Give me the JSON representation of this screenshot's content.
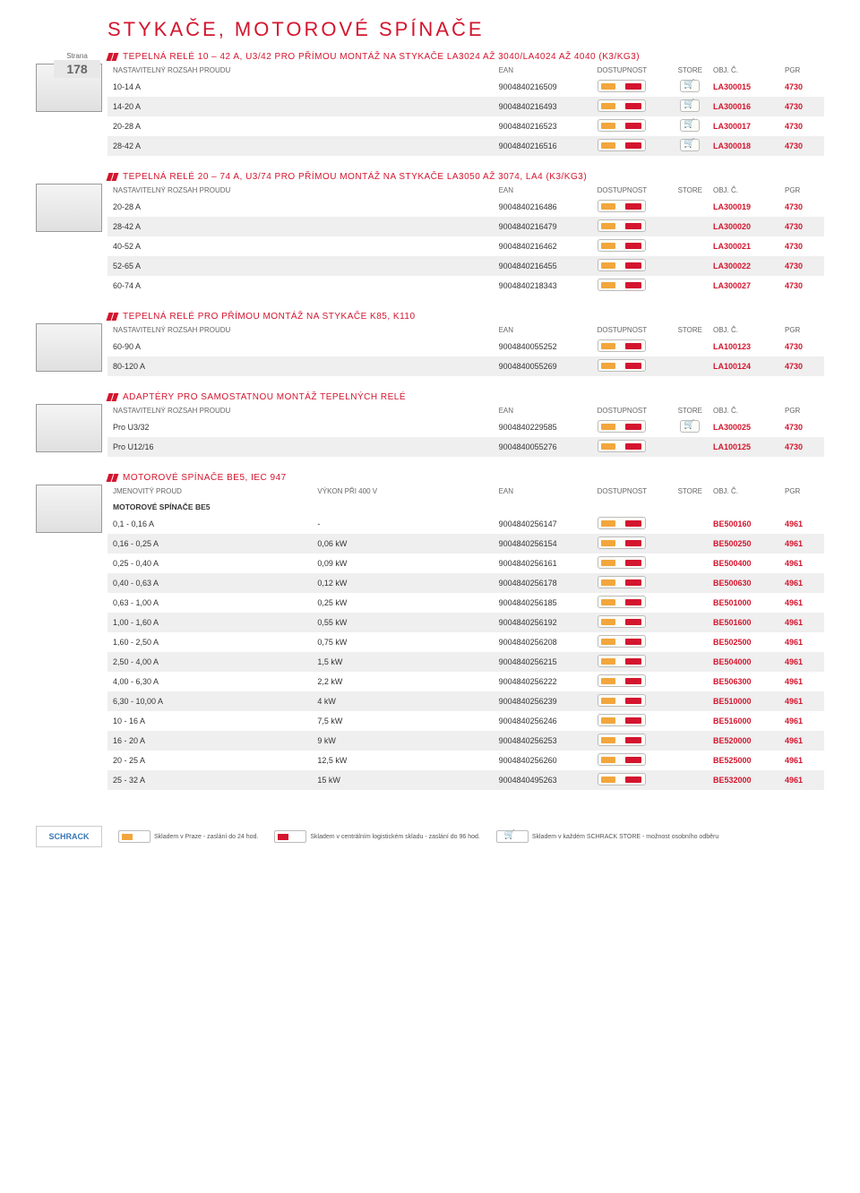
{
  "page": {
    "title": "STYKAČE, MOTOROVÉ SPÍNAČE",
    "strana_label": "Strana",
    "strana_num": "178"
  },
  "colors": {
    "accent": "#d4152e",
    "zebra": "#efefef",
    "text": "#333333"
  },
  "common_headers": {
    "col1": "NASTAVITELNÝ ROZSAH PROUDU",
    "ean": "EAN",
    "dostup": "DOSTUPNOST",
    "store": "STORE",
    "obj": "OBJ. Č.",
    "pgr": "PGR"
  },
  "sections": [
    {
      "title": "TEPELNÁ RELÉ 10 – 42 A, U3/42 PRO PŘÍMOU MONTÁŽ NA STYKAČE LA3024 AŽ 3040/LA4024 AŽ 4040 (K3/KG3)",
      "rows": [
        {
          "c1": "10-14 A",
          "ean": "9004840216509",
          "store": true,
          "obj": "LA300015",
          "pgr": "4730",
          "z": false
        },
        {
          "c1": "14-20 A",
          "ean": "9004840216493",
          "store": true,
          "obj": "LA300016",
          "pgr": "4730",
          "z": true
        },
        {
          "c1": "20-28 A",
          "ean": "9004840216523",
          "store": true,
          "obj": "LA300017",
          "pgr": "4730",
          "z": false
        },
        {
          "c1": "28-42 A",
          "ean": "9004840216516",
          "store": true,
          "obj": "LA300018",
          "pgr": "4730",
          "z": true
        }
      ]
    },
    {
      "title": "TEPELNÁ RELÉ 20 – 74 A, U3/74 PRO PŘÍMOU MONTÁŽ NA STYKAČE LA3050 AŽ 3074, LA4 (K3/KG3)",
      "rows": [
        {
          "c1": "20-28 A",
          "ean": "9004840216486",
          "store": false,
          "obj": "LA300019",
          "pgr": "4730",
          "z": false
        },
        {
          "c1": "28-42 A",
          "ean": "9004840216479",
          "store": false,
          "obj": "LA300020",
          "pgr": "4730",
          "z": true
        },
        {
          "c1": "40-52 A",
          "ean": "9004840216462",
          "store": false,
          "obj": "LA300021",
          "pgr": "4730",
          "z": false
        },
        {
          "c1": "52-65 A",
          "ean": "9004840216455",
          "store": false,
          "obj": "LA300022",
          "pgr": "4730",
          "z": true
        },
        {
          "c1": "60-74 A",
          "ean": "9004840218343",
          "store": false,
          "obj": "LA300027",
          "pgr": "4730",
          "z": false
        }
      ]
    },
    {
      "title": "TEPELNÁ RELÉ PRO PŘÍMOU MONTÁŽ NA STYKAČE K85, K110",
      "rows": [
        {
          "c1": "60-90 A",
          "ean": "9004840055252",
          "store": false,
          "obj": "LA100123",
          "pgr": "4730",
          "z": false
        },
        {
          "c1": "80-120 A",
          "ean": "9004840055269",
          "store": false,
          "obj": "LA100124",
          "pgr": "4730",
          "z": true
        }
      ]
    },
    {
      "title": "ADAPTÉRY PRO SAMOSTATNOU MONTÁŽ TEPELNÝCH RELÉ",
      "rows": [
        {
          "c1": "Pro U3/32",
          "ean": "9004840229585",
          "store": true,
          "obj": "LA300025",
          "pgr": "4730",
          "z": false
        },
        {
          "c1": "Pro U12/16",
          "ean": "9004840055276",
          "store": false,
          "obj": "LA100125",
          "pgr": "4730",
          "z": true
        }
      ]
    }
  ],
  "motor_section": {
    "title": "MOTOROVÉ SPÍNAČE BE5, IEC 947",
    "header_col1": "JMENOVITÝ PROUD",
    "header_col2": "VÝKON PŘI 400 V",
    "subheader": "MOTOROVÉ SPÍNAČE BE5",
    "rows": [
      {
        "c1": "0,1 - 0,16 A",
        "c2": "-",
        "ean": "9004840256147",
        "obj": "BE500160",
        "pgr": "4961",
        "z": false
      },
      {
        "c1": "0,16 - 0,25 A",
        "c2": "0,06 kW",
        "ean": "9004840256154",
        "obj": "BE500250",
        "pgr": "4961",
        "z": true
      },
      {
        "c1": "0,25 - 0,40 A",
        "c2": "0,09 kW",
        "ean": "9004840256161",
        "obj": "BE500400",
        "pgr": "4961",
        "z": false
      },
      {
        "c1": "0,40 - 0,63 A",
        "c2": "0,12 kW",
        "ean": "9004840256178",
        "obj": "BE500630",
        "pgr": "4961",
        "z": true
      },
      {
        "c1": "0,63 - 1,00 A",
        "c2": "0,25 kW",
        "ean": "9004840256185",
        "obj": "BE501000",
        "pgr": "4961",
        "z": false
      },
      {
        "c1": "1,00 - 1,60 A",
        "c2": "0,55 kW",
        "ean": "9004840256192",
        "obj": "BE501600",
        "pgr": "4961",
        "z": true
      },
      {
        "c1": "1,60 - 2,50 A",
        "c2": "0,75 kW",
        "ean": "9004840256208",
        "obj": "BE502500",
        "pgr": "4961",
        "z": false
      },
      {
        "c1": "2,50 - 4,00 A",
        "c2": "1,5 kW",
        "ean": "9004840256215",
        "obj": "BE504000",
        "pgr": "4961",
        "z": true
      },
      {
        "c1": "4,00 - 6,30 A",
        "c2": "2,2 kW",
        "ean": "9004840256222",
        "obj": "BE506300",
        "pgr": "4961",
        "z": false
      },
      {
        "c1": "6,30 - 10,00 A",
        "c2": "4 kW",
        "ean": "9004840256239",
        "obj": "BE510000",
        "pgr": "4961",
        "z": true
      },
      {
        "c1": "10 - 16 A",
        "c2": "7,5 kW",
        "ean": "9004840256246",
        "obj": "BE516000",
        "pgr": "4961",
        "z": false
      },
      {
        "c1": "16 - 20 A",
        "c2": "9 kW",
        "ean": "9004840256253",
        "obj": "BE520000",
        "pgr": "4961",
        "z": true
      },
      {
        "c1": "20 - 25 A",
        "c2": "12,5 kW",
        "ean": "9004840256260",
        "obj": "BE525000",
        "pgr": "4961",
        "z": false
      },
      {
        "c1": "25 - 32 A",
        "c2": "15 kW",
        "ean": "9004840495263",
        "obj": "BE532000",
        "pgr": "4961",
        "z": true
      }
    ]
  },
  "footer": {
    "logo": "SCHRACK",
    "leg1": "Skladem v Praze - zaslání do 24 hod.",
    "leg2": "Skladem v centrálním logistickém skladu - zaslání do 96 hod.",
    "leg3": "Skladem v každém SCHRACK STORE - možnost osobního odběru"
  }
}
